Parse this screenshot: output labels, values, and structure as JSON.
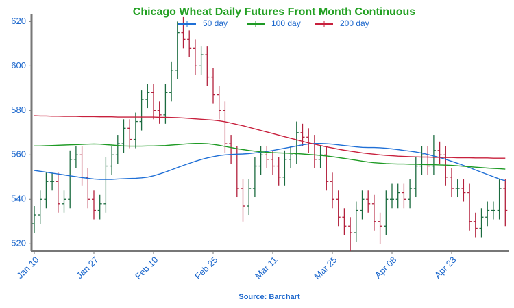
{
  "chart_data": {
    "type": "ohlc",
    "title": "Chicago Wheat Daily Futures Front Month Continuous",
    "source": "Source: Barchart",
    "categories": [
      "Jan 10",
      null,
      null,
      null,
      null,
      null,
      null,
      null,
      null,
      null,
      "Jan 27",
      null,
      null,
      null,
      null,
      null,
      null,
      null,
      null,
      null,
      "Feb 10",
      null,
      null,
      null,
      null,
      null,
      null,
      null,
      null,
      null,
      "Feb 25",
      null,
      null,
      null,
      null,
      null,
      null,
      null,
      null,
      null,
      "Mar 11",
      null,
      null,
      null,
      null,
      null,
      null,
      null,
      null,
      null,
      "Mar 25",
      null,
      null,
      null,
      null,
      null,
      null,
      null,
      null,
      null,
      "Apr 08",
      null,
      null,
      null,
      null,
      null,
      null,
      null,
      null,
      null,
      "Apr 23",
      null,
      null,
      null,
      null,
      null,
      null,
      null,
      null,
      null
    ],
    "ohlc": {
      "up_color": "#1b6b3f",
      "down_color": "#b3203c",
      "open": [
        529,
        533,
        540,
        548,
        548,
        538,
        540,
        558,
        560,
        550,
        540,
        535,
        538,
        555,
        560,
        565,
        572,
        567,
        575,
        585,
        588,
        580,
        578,
        588,
        598,
        615,
        612,
        608,
        600,
        605,
        595,
        587,
        580,
        565,
        560,
        545,
        537,
        545,
        555,
        560,
        558,
        555,
        550,
        558,
        560,
        570,
        568,
        565,
        558,
        560,
        548,
        540,
        532,
        528,
        525,
        535,
        540,
        538,
        530,
        528,
        540,
        540,
        543,
        540,
        545,
        555,
        560,
        555,
        562,
        560,
        550,
        545,
        545,
        543,
        530,
        527,
        532,
        535,
        535,
        545
      ],
      "high": [
        537,
        544,
        552,
        552,
        552,
        544,
        562,
        564,
        564,
        554,
        544,
        542,
        559,
        564,
        569,
        576,
        576,
        579,
        589,
        592,
        592,
        584,
        592,
        602,
        620,
        622,
        616,
        612,
        609,
        609,
        599,
        591,
        584,
        569,
        564,
        549,
        549,
        559,
        564,
        564,
        562,
        559,
        562,
        564,
        575,
        574,
        572,
        569,
        564,
        564,
        552,
        544,
        536,
        532,
        539,
        544,
        544,
        542,
        534,
        544,
        547,
        547,
        547,
        549,
        559,
        564,
        564,
        569,
        566,
        564,
        554,
        549,
        549,
        547,
        534,
        536,
        539,
        539,
        549,
        549
      ],
      "low": [
        525,
        529,
        536,
        544,
        534,
        534,
        536,
        554,
        546,
        536,
        531,
        531,
        534,
        551,
        556,
        561,
        563,
        563,
        571,
        581,
        576,
        574,
        574,
        584,
        594,
        608,
        604,
        596,
        596,
        591,
        583,
        576,
        561,
        556,
        541,
        530,
        533,
        541,
        551,
        554,
        551,
        546,
        546,
        554,
        556,
        564,
        561,
        554,
        554,
        544,
        536,
        528,
        524,
        517,
        521,
        531,
        534,
        526,
        520,
        524,
        536,
        536,
        536,
        536,
        541,
        551,
        551,
        551,
        556,
        546,
        541,
        541,
        539,
        526,
        523,
        523,
        528,
        531,
        531,
        528
      ],
      "close": [
        533,
        540,
        548,
        548,
        538,
        540,
        558,
        560,
        550,
        540,
        535,
        538,
        555,
        560,
        565,
        572,
        567,
        575,
        585,
        588,
        580,
        578,
        588,
        598,
        615,
        612,
        608,
        600,
        605,
        595,
        587,
        580,
        565,
        560,
        545,
        537,
        545,
        555,
        560,
        558,
        555,
        550,
        558,
        560,
        570,
        568,
        565,
        558,
        560,
        548,
        540,
        532,
        528,
        525,
        535,
        540,
        538,
        530,
        528,
        540,
        540,
        543,
        540,
        545,
        555,
        560,
        555,
        562,
        560,
        550,
        545,
        545,
        543,
        530,
        527,
        532,
        535,
        535,
        545,
        535
      ]
    },
    "series": [
      {
        "name": "50 day",
        "color": "#1f6fd6",
        "values": [
          553,
          552.6,
          552.2,
          551.8,
          551.4,
          551,
          550.6,
          550.2,
          549.8,
          549.5,
          549.2,
          549,
          549,
          549,
          549.2,
          549.3,
          549.4,
          549.5,
          549.7,
          550,
          550.6,
          551.4,
          552.3,
          553.3,
          554.3,
          555.3,
          556.2,
          557.1,
          557.9,
          558.6,
          559.2,
          559.7,
          560,
          560.2,
          560.3,
          560.4,
          560.6,
          560.9,
          561.2,
          561.5,
          562,
          562.5,
          563,
          563.5,
          564,
          564.5,
          564.9,
          565.1,
          565.1,
          565,
          564.8,
          564.5,
          564.2,
          563.9,
          563.6,
          563.4,
          563.3,
          563.3,
          563.2,
          563,
          562.7,
          562.4,
          562,
          561.7,
          561.3,
          560.8,
          560.2,
          559.5,
          558.8,
          558,
          557.1,
          556.2,
          555.3,
          554.3,
          553.2,
          552.2,
          551.2,
          550.2,
          549.2,
          548.4
        ]
      },
      {
        "name": "100 day",
        "color": "#1e9a24",
        "values": [
          564,
          564,
          564.1,
          564.2,
          564.3,
          564.4,
          564.5,
          564.6,
          564.7,
          564.8,
          564.9,
          564.8,
          564.6,
          564.4,
          564.2,
          564,
          563.9,
          563.9,
          563.9,
          564,
          564,
          564.1,
          564.2,
          564.4,
          564.6,
          564.8,
          565,
          565.1,
          565.1,
          565,
          564.7,
          564.3,
          563.8,
          563.3,
          562.8,
          562.4,
          562,
          561.7,
          561.4,
          561.2,
          561,
          560.9,
          560.8,
          560.7,
          560.6,
          560.4,
          560.2,
          560,
          559.8,
          559.5,
          559.2,
          558.8,
          558.4,
          558,
          557.6,
          557.2,
          556.8,
          556.5,
          556.3,
          556.1,
          556,
          555.9,
          555.9,
          555.8,
          555.8,
          555.7,
          555.6,
          555.6,
          555.5,
          555.4,
          555.3,
          555.1,
          554.9,
          554.7,
          554.5,
          554.3,
          554.1,
          553.9,
          553.8,
          553.6
        ]
      },
      {
        "name": "200 day",
        "color": "#c8203d",
        "values": [
          577.6,
          577.5,
          577.5,
          577.4,
          577.4,
          577.3,
          577.3,
          577.3,
          577.2,
          577.2,
          577.2,
          577.1,
          577.1,
          577.1,
          577,
          577,
          577,
          577,
          577,
          577,
          577,
          576.9,
          576.9,
          576.8,
          576.7,
          576.6,
          576.4,
          576.2,
          576,
          575.8,
          575.6,
          575.3,
          574.9,
          574.3,
          573.7,
          573.1,
          572.4,
          571.7,
          571,
          570.3,
          569.6,
          568.9,
          568.2,
          567.5,
          566.8,
          566.1,
          565.4,
          564.8,
          564.2,
          563.6,
          563.1,
          562.6,
          562.1,
          561.7,
          561.3,
          560.9,
          560.6,
          560.3,
          560,
          559.8,
          559.6,
          559.4,
          559.3,
          559.2,
          559.1,
          559,
          559,
          558.9,
          558.9,
          558.8,
          558.8,
          558.7,
          558.7,
          558.7,
          558.6,
          558.6,
          558.6,
          558.5,
          558.5,
          558.5
        ]
      }
    ],
    "ylim": [
      517,
      623.5
    ],
    "yticks": [
      520,
      540,
      560,
      580,
      600,
      620
    ],
    "grid": false
  }
}
